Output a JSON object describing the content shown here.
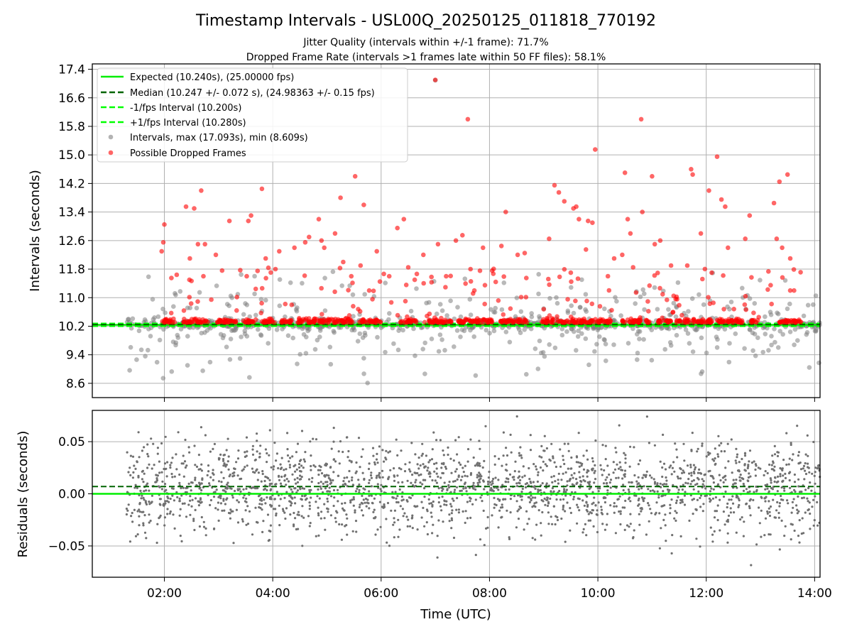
{
  "title": "Timestamp Intervals - USL00Q_20250125_011818_770192",
  "subtitle_1": "Jitter Quality (intervals within +/-1 frame): 71.7%",
  "subtitle_2": "Dropped Frame Rate (intervals >1 frames late within 50 FF files): 58.1%",
  "colors": {
    "expected": "#00ee00",
    "median": "#006400",
    "interval_band": "#00ff00",
    "intervals": "#808080",
    "dropped": "#ff0000",
    "residuals": "#707070"
  },
  "chart_data": [
    {
      "type": "scatter",
      "name": "intervals-panel",
      "xlabel": "",
      "ylabel": "Intervals (seconds)",
      "xlim": [
        0.67,
        14.1
      ],
      "ylim": [
        8.2,
        17.55
      ],
      "x_units": "hours UTC",
      "yticks": [
        8.6,
        9.4,
        10.2,
        11.0,
        11.8,
        12.6,
        13.4,
        14.2,
        15.0,
        15.8,
        16.6,
        17.4
      ],
      "ytick_labels": [
        "8.6",
        "9.4",
        "10.2",
        "11.0",
        "11.8",
        "12.6",
        "13.4",
        "14.2",
        "15.0",
        "15.8",
        "16.6",
        "17.4"
      ],
      "grid": true,
      "legend_position": "top-left",
      "legend": [
        {
          "label": "Expected (10.240s), (25.00000 fps)",
          "style": "solid",
          "color": "#00ee00"
        },
        {
          "label": "Median (10.247 +/- 0.072 s), (24.98363 +/- 0.15 fps)",
          "style": "dashed",
          "color": "#006400"
        },
        {
          "label": "-1/fps Interval (10.200s)",
          "style": "dashed",
          "color": "#00ff00"
        },
        {
          "label": "+1/fps Interval (10.280s)",
          "style": "dashed",
          "color": "#00ff00"
        },
        {
          "label": "Intervals, max (17.093s), min (8.609s)",
          "style": "marker",
          "color": "#808080"
        },
        {
          "label": "Possible Dropped Frames",
          "style": "marker",
          "color": "#ff0000"
        }
      ],
      "lines": {
        "expected": 10.24,
        "median": 10.247,
        "minus_1fps": 10.2,
        "plus_1fps": 10.28
      },
      "series": [
        {
          "name": "Intervals, max (17.093s), min (8.609s)",
          "x_range": [
            1.3,
            14.1
          ],
          "y_min": 8.609,
          "y_max": 17.093
        },
        {
          "name": "Possible Dropped Frames",
          "points": [
            [
              1.95,
              12.3
            ],
            [
              2.0,
              13.05
            ],
            [
              1.98,
              12.55
            ],
            [
              2.13,
              11.55
            ],
            [
              2.4,
              13.55
            ],
            [
              2.47,
              12.1
            ],
            [
              2.55,
              13.5
            ],
            [
              2.62,
              12.5
            ],
            [
              2.68,
              14.0
            ],
            [
              2.72,
              11.6
            ],
            [
              2.75,
              12.5
            ],
            [
              2.95,
              12.2
            ],
            [
              3.2,
              13.15
            ],
            [
              3.52,
              11.6
            ],
            [
              3.55,
              13.15
            ],
            [
              3.6,
              13.3
            ],
            [
              3.72,
              11.75
            ],
            [
              3.8,
              14.05
            ],
            [
              3.87,
              12.1
            ],
            [
              4.05,
              11.8
            ],
            [
              4.12,
              12.3
            ],
            [
              4.4,
              12.4
            ],
            [
              4.6,
              12.55
            ],
            [
              4.67,
              12.7
            ],
            [
              4.85,
              13.2
            ],
            [
              4.9,
              12.6
            ],
            [
              4.95,
              12.4
            ],
            [
              5.15,
              12.8
            ],
            [
              5.25,
              13.8
            ],
            [
              5.3,
              12.0
            ],
            [
              5.45,
              11.6
            ],
            [
              5.52,
              14.4
            ],
            [
              5.62,
              11.9
            ],
            [
              5.68,
              13.6
            ],
            [
              5.78,
              11.2
            ],
            [
              5.92,
              12.3
            ],
            [
              6.15,
              11.6
            ],
            [
              6.3,
              12.95
            ],
            [
              6.42,
              13.2
            ],
            [
              6.5,
              11.85
            ],
            [
              6.62,
              11.5
            ],
            [
              6.78,
              12.2
            ],
            [
              7.0,
              17.1
            ],
            [
              7.05,
              12.5
            ],
            [
              7.2,
              11.6
            ],
            [
              7.38,
              12.6
            ],
            [
              7.5,
              12.75
            ],
            [
              7.6,
              16.0
            ],
            [
              7.65,
              11.8
            ],
            [
              7.72,
              11.2
            ],
            [
              7.88,
              12.4
            ],
            [
              8.22,
              12.45
            ],
            [
              8.3,
              13.4
            ],
            [
              8.52,
              12.2
            ],
            [
              8.65,
              12.25
            ],
            [
              8.68,
              11.55
            ],
            [
              9.1,
              12.65
            ],
            [
              9.2,
              14.15
            ],
            [
              9.28,
              13.95
            ],
            [
              9.38,
              13.7
            ],
            [
              9.5,
              11.7
            ],
            [
              9.55,
              13.5
            ],
            [
              9.6,
              13.55
            ],
            [
              9.65,
              13.2
            ],
            [
              9.78,
              12.35
            ],
            [
              9.82,
              13.15
            ],
            [
              9.9,
              13.1
            ],
            [
              9.95,
              15.15
            ],
            [
              10.3,
              12.1
            ],
            [
              10.45,
              12.2
            ],
            [
              10.5,
              14.5
            ],
            [
              10.55,
              13.2
            ],
            [
              10.6,
              12.8
            ],
            [
              10.65,
              11.85
            ],
            [
              10.8,
              16.0
            ],
            [
              10.82,
              13.4
            ],
            [
              11.0,
              14.4
            ],
            [
              11.05,
              12.5
            ],
            [
              11.15,
              12.6
            ],
            [
              11.35,
              11.9
            ],
            [
              11.65,
              11.9
            ],
            [
              11.72,
              14.6
            ],
            [
              11.75,
              14.45
            ],
            [
              11.9,
              12.8
            ],
            [
              12.05,
              14.0
            ],
            [
              12.1,
              11.7
            ],
            [
              12.2,
              14.95
            ],
            [
              12.28,
              13.75
            ],
            [
              12.35,
              13.55
            ],
            [
              12.4,
              12.4
            ],
            [
              12.72,
              12.65
            ],
            [
              12.8,
              13.3
            ],
            [
              13.25,
              13.65
            ],
            [
              13.35,
              14.25
            ],
            [
              13.4,
              12.4
            ],
            [
              13.5,
              14.45
            ],
            [
              13.55,
              12.1
            ],
            [
              13.55,
              11.2
            ],
            [
              13.62,
              11.2
            ],
            [
              13.3,
              12.65
            ]
          ]
        }
      ]
    },
    {
      "type": "scatter",
      "name": "residuals-panel",
      "xlabel": "Time (UTC)",
      "ylabel": "Residuals (seconds)",
      "xlim": [
        0.67,
        14.1
      ],
      "ylim": [
        -0.08,
        0.08
      ],
      "yticks": [
        -0.05,
        0.0,
        0.05
      ],
      "ytick_labels": [
        "−0.05",
        "0.00",
        "0.05"
      ],
      "xticks": [
        2,
        4,
        6,
        8,
        10,
        12,
        14
      ],
      "xtick_labels": [
        "02:00",
        "04:00",
        "06:00",
        "08:00",
        "10:00",
        "12:00",
        "14:00"
      ],
      "grid": true,
      "lines": {
        "expected": 0.0,
        "median": 0.007
      },
      "series": [
        {
          "name": "residuals",
          "x_range": [
            1.3,
            14.1
          ],
          "y_mean": 0.007,
          "y_spread": 0.022
        }
      ]
    }
  ]
}
